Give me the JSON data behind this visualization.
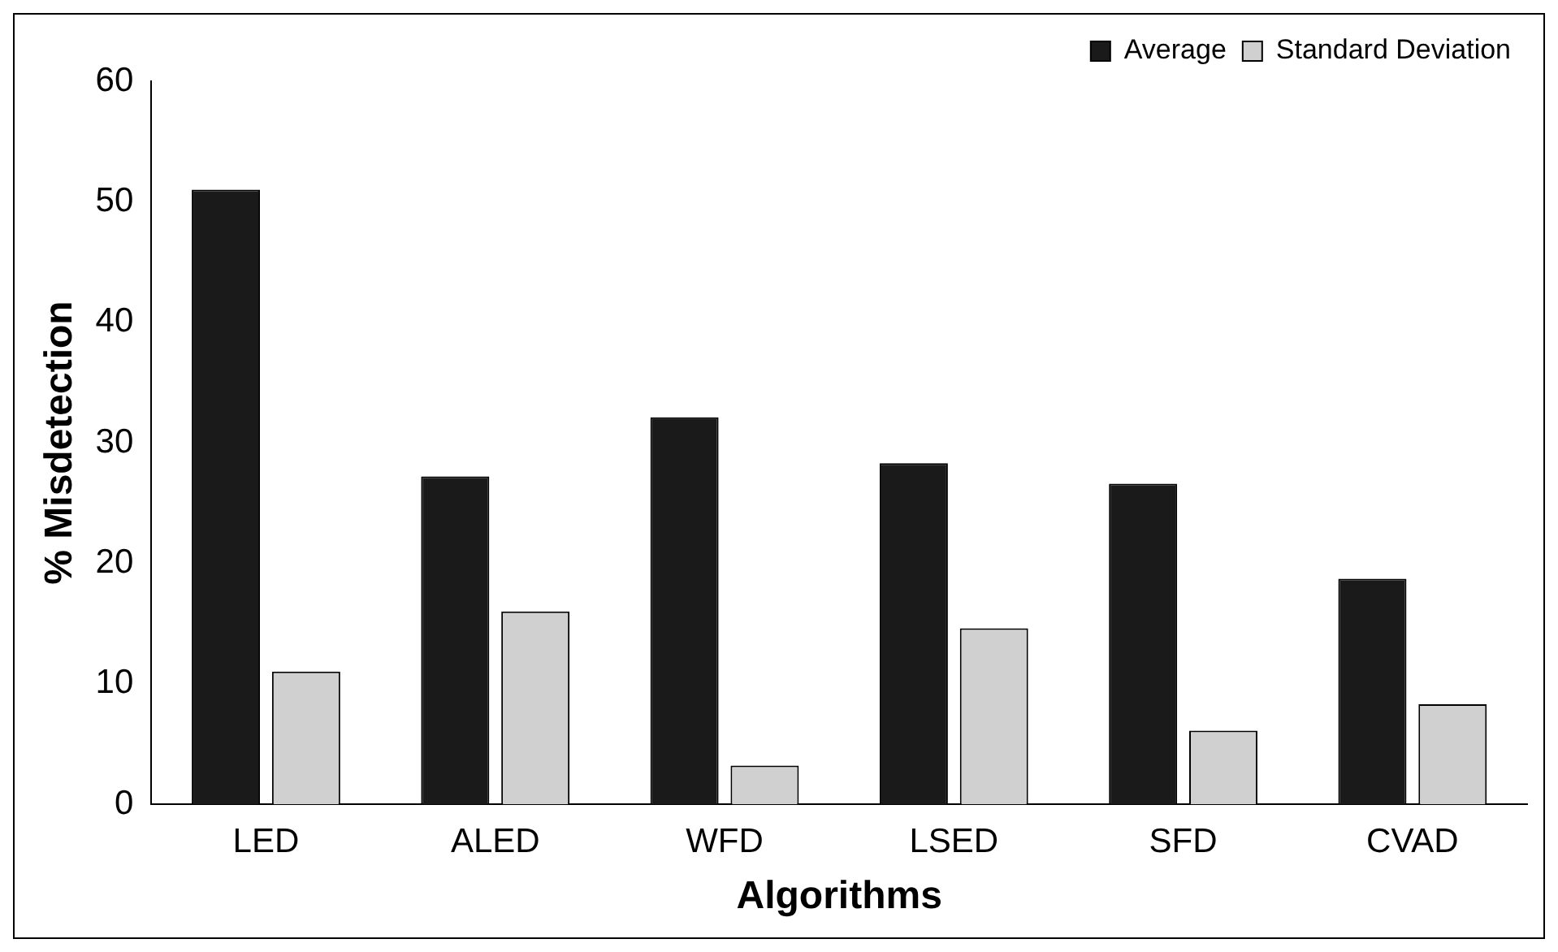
{
  "chart_data": {
    "type": "bar",
    "xlabel": "Algorithms",
    "ylabel": "% Misdetection",
    "categories": [
      "LED",
      "ALED",
      "WFD",
      "LSED",
      "SFD",
      "CVAD"
    ],
    "series": [
      {
        "name": "Average",
        "color": "#1a1a1a",
        "values": [
          51,
          27.2,
          32.1,
          28.3,
          26.6,
          18.7
        ]
      },
      {
        "name": "Standard Deviation",
        "color": "#d0d0d0",
        "values": [
          11,
          16,
          3.2,
          14.6,
          6.1,
          8.3
        ]
      }
    ],
    "ylim": [
      0,
      60
    ],
    "yticks": [
      0,
      10,
      20,
      30,
      40,
      50,
      60
    ],
    "grid": false,
    "legend": "top right"
  }
}
